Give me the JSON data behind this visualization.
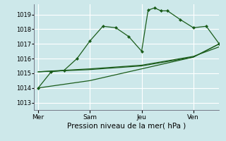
{
  "bg_color": "#cde8ea",
  "grid_color": "#ffffff",
  "line_color": "#1a5c1a",
  "xlabel": "Pression niveau de la mer( hPa )",
  "ylim": [
    1012.5,
    1019.7
  ],
  "yticks": [
    1013,
    1014,
    1015,
    1016,
    1017,
    1018,
    1019
  ],
  "xtick_labels": [
    "Mer",
    "Sam",
    "Jeu",
    "Ven"
  ],
  "xtick_positions": [
    0,
    24,
    48,
    72
  ],
  "vlines": [
    0,
    24,
    48,
    72
  ],
  "xlim": [
    -2,
    84
  ],
  "series1_x": [
    0,
    6,
    12,
    18,
    24,
    30,
    36,
    42,
    48,
    51,
    54,
    57,
    60,
    66,
    72,
    78,
    84
  ],
  "series1_y": [
    1014.0,
    1015.1,
    1015.2,
    1016.0,
    1017.2,
    1018.2,
    1018.1,
    1017.5,
    1016.5,
    1019.3,
    1019.45,
    1019.25,
    1019.25,
    1018.65,
    1018.1,
    1018.2,
    1017.0
  ],
  "series2_x": [
    0,
    24,
    48,
    72,
    84
  ],
  "series2_y": [
    1015.1,
    1015.25,
    1015.5,
    1016.1,
    1017.0
  ],
  "series3_x": [
    0,
    24,
    48,
    72,
    84
  ],
  "series3_y": [
    1015.1,
    1015.3,
    1015.55,
    1016.15,
    1016.8
  ],
  "series4_x": [
    0,
    24,
    48,
    72,
    84
  ],
  "series4_y": [
    1014.0,
    1014.5,
    1015.3,
    1016.1,
    1017.0
  ],
  "ytick_fontsize": 6,
  "xtick_fontsize": 6.5,
  "xlabel_fontsize": 7.5
}
